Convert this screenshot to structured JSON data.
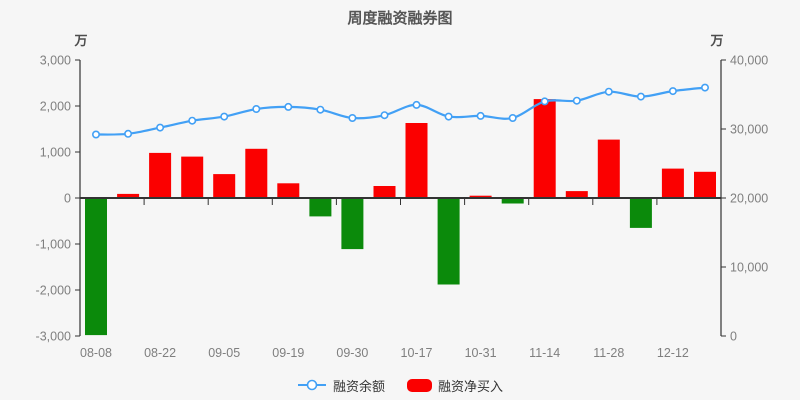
{
  "title": "周度融资融券图",
  "legend": {
    "items": [
      {
        "label": "融资余额",
        "marker": "line-circle-icon"
      },
      {
        "label": "融资净买入",
        "marker": "bar-swatch-icon"
      }
    ]
  },
  "colors": {
    "background": "#f6f6f6",
    "line": "#42a0f5",
    "marker_fill": "#ffffff",
    "bar_positive": "#fb0000",
    "bar_negative": "#0b8a0b",
    "axis_line": "#333333",
    "tick_text": "#7f7f7f",
    "axis_name_text": "#4d4d4d",
    "title_text": "#555555",
    "legend_text": "#333333"
  },
  "left_axis": {
    "name": "万",
    "tick_labels": [
      "3,000",
      "2,000",
      "1,000",
      "0",
      "-1,000",
      "-2,000",
      "-3,000"
    ],
    "tick_values": [
      3000,
      2000,
      1000,
      0,
      -1000,
      -2000,
      -3000
    ],
    "min": -3000,
    "max": 3000
  },
  "right_axis": {
    "name": "万",
    "tick_labels": [
      "40,000",
      "30,000",
      "20,000",
      "10,000",
      "0"
    ],
    "tick_values": [
      40000,
      30000,
      20000,
      10000,
      0
    ],
    "min": 0,
    "max": 40000
  },
  "chart_data": {
    "type": "bar+line combo, dual y-axis",
    "categories": [
      "08-08",
      "",
      "08-22",
      "",
      "09-05",
      "",
      "09-19",
      "",
      "09-30",
      "",
      "10-17",
      "",
      "10-31",
      "",
      "11-14",
      "",
      "11-28",
      "",
      "12-12",
      ""
    ],
    "visible_x_labels": [
      "08-08",
      "08-22",
      "09-05",
      "09-19",
      "09-30",
      "10-17",
      "10-31",
      "11-14",
      "11-28",
      "12-12"
    ],
    "series": [
      {
        "name": "融资余额",
        "type": "line",
        "y_axis": "right",
        "values": [
          29200,
          29300,
          30200,
          31200,
          31800,
          32900,
          33200,
          32800,
          31600,
          32000,
          33500,
          31800,
          31900,
          31600,
          34000,
          34100,
          35400,
          34700,
          35500,
          36000
        ]
      },
      {
        "name": "融资净买入",
        "type": "bar",
        "y_axis": "left",
        "values": [
          -2980,
          90,
          980,
          900,
          520,
          1070,
          320,
          -400,
          -1110,
          260,
          1630,
          -1880,
          50,
          -120,
          2150,
          150,
          1270,
          -650,
          640,
          570
        ]
      }
    ],
    "left_ylim": [
      -3000,
      3000
    ],
    "right_ylim": [
      0,
      40000
    ],
    "grid": false,
    "legend_position": "bottom-center"
  }
}
